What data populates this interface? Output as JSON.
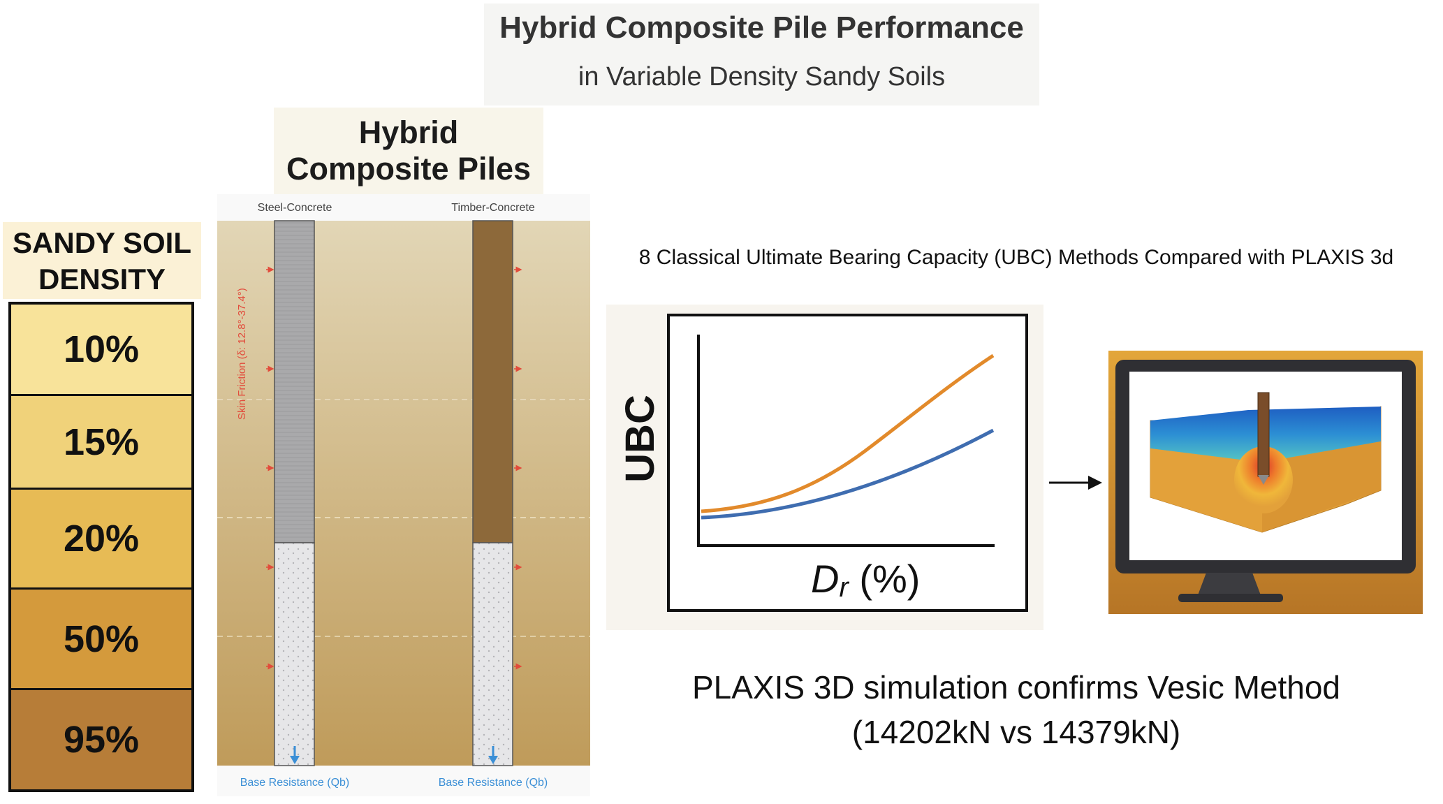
{
  "title": {
    "main": "Hybrid Composite Pile Performance",
    "sub": "in Variable Density Sandy Soils"
  },
  "piles_header": {
    "line1": "Hybrid",
    "line2": "Composite Piles"
  },
  "soil_density": {
    "header_line1": "SANDY SOIL",
    "header_line2": "DENSITY",
    "levels": [
      {
        "label": "10%",
        "color": "#f8e39a"
      },
      {
        "label": "15%",
        "color": "#f0d27a"
      },
      {
        "label": "20%",
        "color": "#e7bb55"
      },
      {
        "label": "50%",
        "color": "#d49a3c"
      },
      {
        "label": "95%",
        "color": "#b77d38"
      }
    ]
  },
  "pile_diagram": {
    "piles": [
      {
        "label": "Steel-Concrete",
        "upper_color": "#a9a9ab",
        "lower_color": "#e6e6e8"
      },
      {
        "label": "Timber-Concrete",
        "upper_color": "#8d693a",
        "lower_color": "#e6e6e8"
      }
    ],
    "skin_friction_label": "Skin Friction (δ: 12.8°-37.4°)",
    "base_resistance_label": "Base Resistance (Qb)",
    "friction_color": "#e24b3b",
    "base_color": "#3b8fd6"
  },
  "methods_text": "8 Classical Ultimate Bearing Capacity (UBC) Methods Compared with PLAXIS 3d",
  "ubc_chart": {
    "y_label": "UBC",
    "x_label": "Dr (%)",
    "x_label_main": "D",
    "x_label_sub": "r",
    "x_label_rest": " (%)",
    "series_colors": [
      "#e28a2b",
      "#3f6db0"
    ]
  },
  "plaxis_panel": {
    "icon": "monitor-3d-model-icon"
  },
  "conclusion": {
    "line1": "PLAXIS 3D simulation confirms Vesic Method",
    "line2": "(14202kN vs 14379kN)"
  }
}
